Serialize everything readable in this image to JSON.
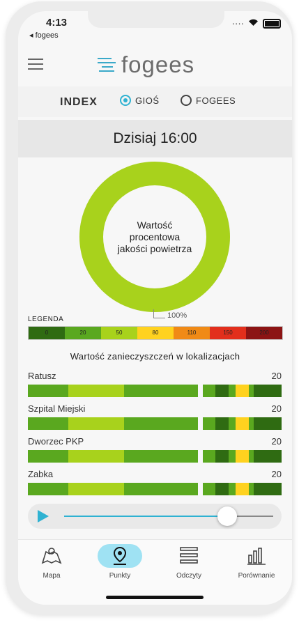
{
  "status": {
    "time": "4:13",
    "back_label": "◂ fogees"
  },
  "header": {
    "logo_text": "fogees"
  },
  "index": {
    "label": "INDEX",
    "options": [
      {
        "label": "GIOŚ",
        "selected": true
      },
      {
        "label": "FOGEES",
        "selected": false
      }
    ]
  },
  "date_label": "Dzisiaj  16:00",
  "donut": {
    "text": "Wartość procentowa jakości powietrza",
    "percent": 100,
    "percent_label": "100%",
    "color": "#a8d21c"
  },
  "legend": {
    "title": "LEGENDA",
    "items": [
      {
        "label": "0",
        "color": "#2f6b12"
      },
      {
        "label": "20",
        "color": "#5aa81f"
      },
      {
        "label": "50",
        "color": "#a8d21c"
      },
      {
        "label": "80",
        "color": "#ffd21f"
      },
      {
        "label": "110",
        "color": "#f08a16"
      },
      {
        "label": "150",
        "color": "#e22f1c"
      },
      {
        "label": "200",
        "color": "#8c1414"
      }
    ]
  },
  "pollution": {
    "title": "Wartość zanieczyszczeń w lokalizacjach",
    "locations": [
      {
        "name": "Ratusz",
        "value": "20"
      },
      {
        "name": "Szpital Miejski",
        "value": "20"
      },
      {
        "name": "Dworzec PKP",
        "value": "20"
      },
      {
        "name": "Zabka",
        "value": "20"
      }
    ]
  },
  "player": {
    "progress": 0.78
  },
  "nav": {
    "items": [
      {
        "label": "Mapa",
        "icon": "map-icon",
        "active": false
      },
      {
        "label": "Punkty",
        "icon": "location-pin-icon",
        "active": true
      },
      {
        "label": "Odczyty",
        "icon": "readings-icon",
        "active": false
      },
      {
        "label": "Porównanie",
        "icon": "bar-chart-icon",
        "active": false
      }
    ]
  },
  "colors": {
    "accent": "#2fb2d2",
    "green_dark": "#2f6b12",
    "green": "#5aa81f",
    "green_light": "#a8d21c",
    "yellow": "#ffd21f"
  }
}
